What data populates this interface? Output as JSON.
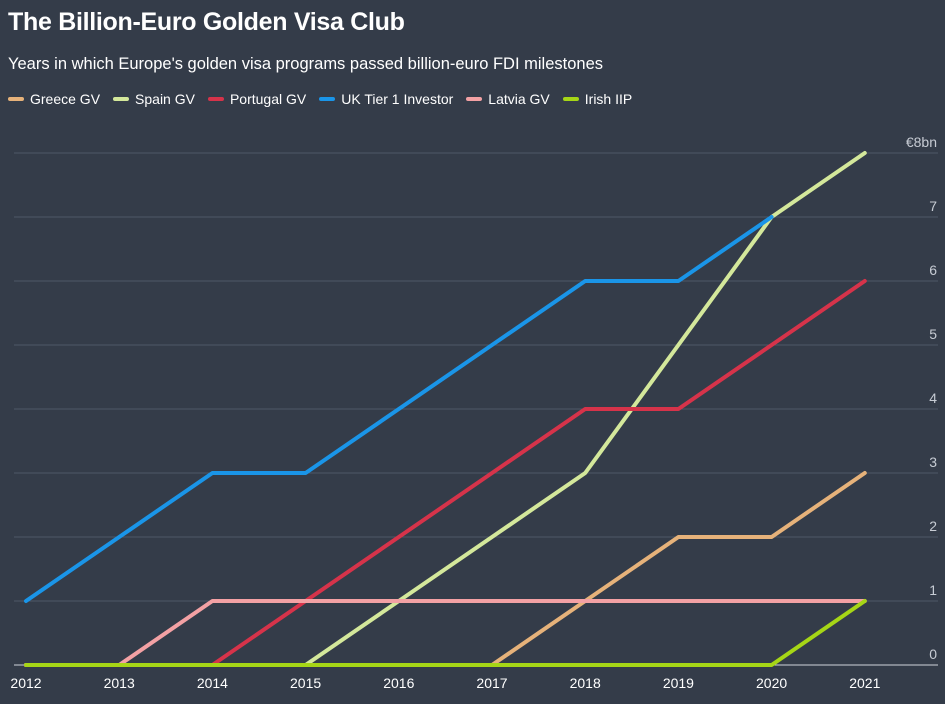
{
  "title": "The Billion-Euro Golden Visa Club",
  "subtitle": "Years in which Europe's golden visa programs passed billion-euro FDI milestones",
  "colors": {
    "background": "#343c49",
    "gridline": "#4e5766",
    "baseline": "#d0d4da"
  },
  "chart_data": {
    "type": "line",
    "title": "The Billion-Euro Golden Visa Club",
    "subtitle": "Years in which Europe's golden visa programs passed billion-euro FDI milestones",
    "x": [
      2012,
      2013,
      2014,
      2015,
      2016,
      2017,
      2018,
      2019,
      2020,
      2021
    ],
    "x_tick_labels": [
      "2012",
      "2013",
      "2014",
      "2015",
      "2016",
      "2017",
      "2018",
      "2019",
      "2020",
      "2021"
    ],
    "y_tick_labels": [
      "0",
      "1",
      "2",
      "3",
      "4",
      "5",
      "6",
      "7",
      "€8bn"
    ],
    "ylim": [
      0,
      8
    ],
    "grid": true,
    "legend_position": "top-left",
    "series": [
      {
        "name": "Greece GV",
        "color": "#e6b27a",
        "values": [
          0,
          0,
          0,
          0,
          0,
          0,
          1,
          2,
          2,
          3
        ]
      },
      {
        "name": "Spain GV",
        "color": "#d4e89b",
        "values": [
          0,
          0,
          0,
          0,
          1,
          2,
          3,
          5,
          7,
          8
        ]
      },
      {
        "name": "Portugal GV",
        "color": "#d6334a",
        "values": [
          0,
          0,
          0,
          1,
          2,
          3,
          4,
          4,
          5,
          6
        ]
      },
      {
        "name": "UK Tier 1 Investor",
        "color": "#1a95e8",
        "values": [
          1,
          2,
          3,
          3,
          4,
          5,
          6,
          6,
          7,
          null
        ]
      },
      {
        "name": "Latvia GV",
        "color": "#f3a1a4",
        "values": [
          0,
          0,
          1,
          1,
          1,
          1,
          1,
          1,
          1,
          1
        ]
      },
      {
        "name": "Irish IIP",
        "color": "#a6d616",
        "values": [
          0,
          0,
          0,
          0,
          0,
          0,
          0,
          0,
          0,
          1
        ]
      }
    ]
  }
}
